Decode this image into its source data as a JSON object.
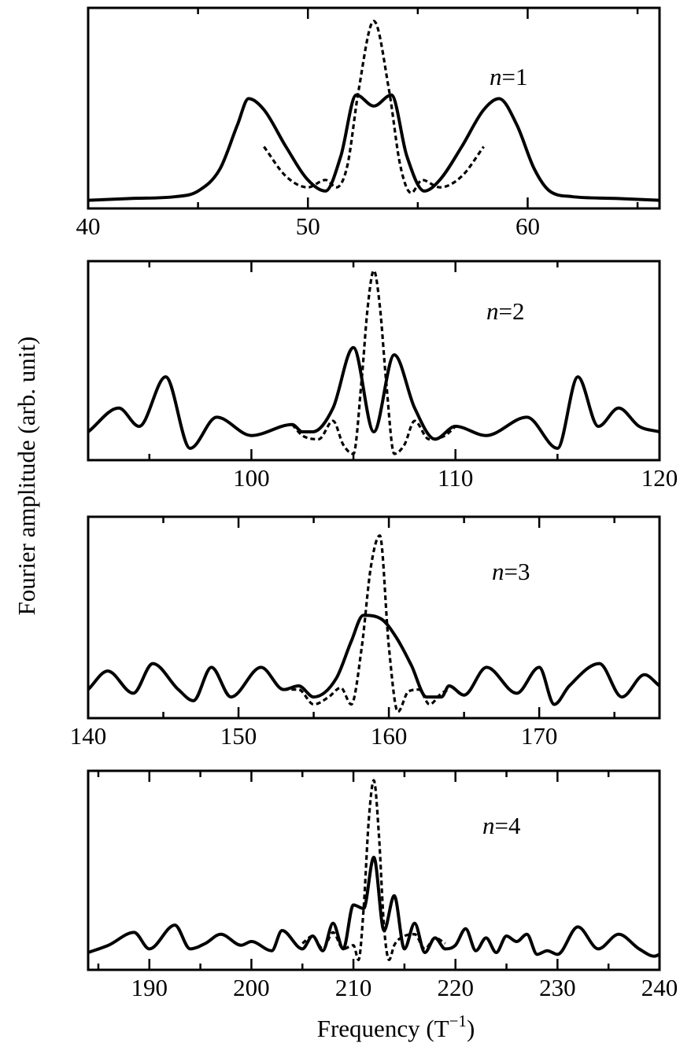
{
  "figure": {
    "ylabel": "Fourier amplitude (arb. unit)",
    "xlabel": "Frequency (T",
    "xlabel_sup": "−1",
    "xlabel_close": ")"
  },
  "chart_data": [
    {
      "type": "line",
      "label_var": "n",
      "label_value": "=1",
      "xlim": [
        40,
        66
      ],
      "ylim": [
        0,
        1
      ],
      "xticks": [
        40,
        50,
        60
      ],
      "minor_step": 5,
      "yticks": [],
      "grid": false,
      "series": [
        {
          "style": "solid",
          "x": [
            40,
            42,
            44,
            45,
            46,
            46.8,
            47.3,
            48,
            49,
            50,
            50.8,
            51.5,
            52.2,
            53,
            53.8,
            54.5,
            55.3,
            56,
            57,
            58,
            58.7,
            59.5,
            60.3,
            61,
            62,
            64,
            66
          ],
          "y": [
            0.01,
            0.02,
            0.03,
            0.06,
            0.18,
            0.42,
            0.56,
            0.5,
            0.3,
            0.12,
            0.06,
            0.25,
            0.58,
            0.52,
            0.58,
            0.25,
            0.06,
            0.12,
            0.3,
            0.5,
            0.56,
            0.42,
            0.18,
            0.06,
            0.03,
            0.02,
            0.01
          ]
        },
        {
          "style": "dashed",
          "x": [
            48,
            49,
            50,
            50.8,
            51.3,
            51.8,
            52.3,
            53,
            53.7,
            54.2,
            54.7,
            55.2,
            56,
            57,
            58
          ],
          "y": [
            0.3,
            0.14,
            0.08,
            0.12,
            0.08,
            0.2,
            0.6,
            0.98,
            0.6,
            0.2,
            0.05,
            0.12,
            0.08,
            0.14,
            0.3
          ]
        }
      ]
    },
    {
      "type": "line",
      "label_var": "n",
      "label_value": "=2",
      "xlim": [
        92,
        120
      ],
      "ylim": [
        0,
        1
      ],
      "xticks": [
        100,
        110,
        120
      ],
      "minor_step": 5,
      "yticks": [],
      "grid": false,
      "series": [
        {
          "style": "solid",
          "x": [
            92,
            93.5,
            94.5,
            95.8,
            97,
            98.3,
            100,
            102,
            102.5,
            103,
            104,
            105,
            106,
            107,
            108,
            109,
            110,
            111.5,
            113.5,
            115,
            116,
            117,
            118,
            119,
            120
          ],
          "y": [
            0.12,
            0.25,
            0.15,
            0.42,
            0.03,
            0.2,
            0.1,
            0.16,
            0.12,
            0.12,
            0.25,
            0.58,
            0.12,
            0.54,
            0.25,
            0.08,
            0.15,
            0.1,
            0.2,
            0.03,
            0.42,
            0.15,
            0.25,
            0.15,
            0.12
          ]
        },
        {
          "style": "dashed",
          "x": [
            102,
            102.5,
            103.3,
            104,
            104.5,
            105,
            105.4,
            105.7,
            106,
            106.3,
            106.6,
            107,
            107.5,
            108,
            108.7,
            109.5,
            110
          ],
          "y": [
            0.16,
            0.1,
            0.08,
            0.18,
            0.05,
            0.0,
            0.4,
            0.8,
            1.0,
            0.8,
            0.4,
            0.0,
            0.05,
            0.18,
            0.08,
            0.1,
            0.15
          ]
        }
      ]
    },
    {
      "type": "line",
      "label_var": "n",
      "label_value": "=3",
      "xlim": [
        140,
        178
      ],
      "ylim": [
        0,
        1
      ],
      "xticks": [
        140,
        150,
        160,
        170
      ],
      "minor_step": 5,
      "yticks": [],
      "grid": false,
      "series": [
        {
          "style": "solid",
          "x": [
            140,
            141.3,
            143,
            144.3,
            146,
            147,
            148.2,
            149.5,
            151.5,
            153,
            154,
            155,
            156.5,
            157.5,
            158.3,
            159.5,
            160.5,
            161.5,
            162.5,
            163.5,
            164,
            165,
            166.5,
            168.5,
            170,
            171,
            172,
            174,
            175.5,
            177,
            178
          ],
          "y": [
            0.12,
            0.22,
            0.1,
            0.26,
            0.12,
            0.06,
            0.24,
            0.08,
            0.24,
            0.12,
            0.14,
            0.08,
            0.18,
            0.38,
            0.52,
            0.5,
            0.4,
            0.25,
            0.08,
            0.08,
            0.14,
            0.09,
            0.24,
            0.1,
            0.24,
            0.04,
            0.14,
            0.26,
            0.08,
            0.2,
            0.14
          ]
        },
        {
          "style": "dashed",
          "x": [
            153,
            154,
            155,
            156,
            156.8,
            157.5,
            158.2,
            158.8,
            159.4,
            160,
            160.6,
            161.3,
            162,
            162.7,
            163.5,
            164
          ],
          "y": [
            0.12,
            0.12,
            0.04,
            0.08,
            0.13,
            0.04,
            0.35,
            0.78,
            0.95,
            0.35,
            0.0,
            0.11,
            0.12,
            0.04,
            0.1,
            0.12
          ]
        }
      ]
    },
    {
      "type": "line",
      "label_var": "n",
      "label_value": "=4",
      "xlim": [
        184,
        240
      ],
      "ylim": [
        0,
        1
      ],
      "xticks": [
        190,
        200,
        210,
        220,
        230,
        240
      ],
      "minor_step": 5,
      "yticks": [],
      "grid": false,
      "series": [
        {
          "style": "solid",
          "x": [
            184,
            186,
            188.5,
            190,
            192.5,
            194,
            195.5,
            197,
            199,
            200,
            202,
            203,
            205,
            206,
            207,
            208,
            209,
            210,
            211,
            212,
            213,
            214,
            215,
            216,
            217,
            218,
            219,
            220,
            221,
            222,
            223,
            224,
            225,
            226,
            227,
            228,
            229,
            230,
            232,
            234,
            236,
            238,
            239.5,
            240
          ],
          "y": [
            0.06,
            0.1,
            0.17,
            0.08,
            0.21,
            0.08,
            0.11,
            0.16,
            0.1,
            0.12,
            0.07,
            0.18,
            0.08,
            0.15,
            0.07,
            0.22,
            0.08,
            0.32,
            0.3,
            0.58,
            0.18,
            0.37,
            0.08,
            0.22,
            0.06,
            0.14,
            0.08,
            0.1,
            0.19,
            0.07,
            0.14,
            0.06,
            0.15,
            0.12,
            0.16,
            0.05,
            0.07,
            0.05,
            0.2,
            0.08,
            0.16,
            0.08,
            0.04,
            0.05
          ]
        },
        {
          "style": "dashed",
          "x": [
            205,
            206,
            207,
            208,
            209,
            210,
            210.5,
            211,
            211.5,
            212,
            212.5,
            213,
            213.5,
            214,
            215,
            216,
            217,
            218,
            219
          ],
          "y": [
            0.11,
            0.15,
            0.08,
            0.17,
            0.08,
            0.1,
            0.02,
            0.3,
            0.78,
            1.0,
            0.7,
            0.2,
            0.02,
            0.1,
            0.15,
            0.16,
            0.08,
            0.14,
            0.11
          ]
        }
      ]
    }
  ]
}
